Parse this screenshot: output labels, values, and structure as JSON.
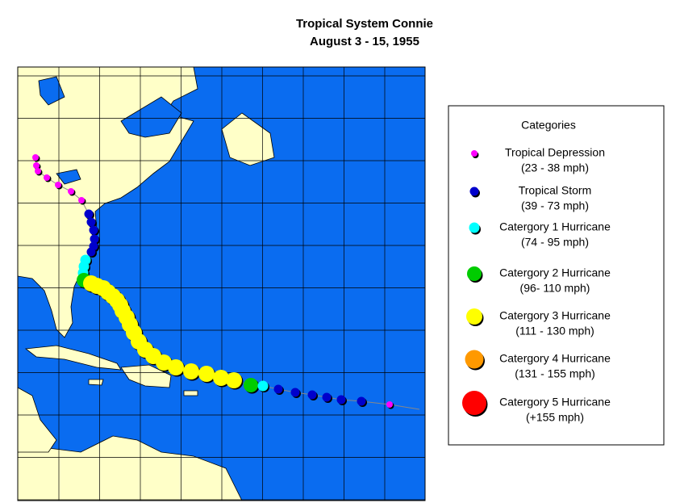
{
  "header": {
    "title": "Tropical System Connie",
    "subtitle": "August 3 -  15, 1955"
  },
  "legend": {
    "title": "Categories",
    "items": [
      {
        "name": "Tropical Depression",
        "range": "(23 - 38 mph)",
        "color": "#ff00ff"
      },
      {
        "name": "Tropical Storm",
        "range": "(39 - 73 mph)",
        "color": "#0000cc"
      },
      {
        "name": "Catergory 1 Hurricane",
        "range": "(74 - 95 mph)",
        "color": "#00ffff"
      },
      {
        "name": "Catergory 2 Hurricane",
        "range": "(96- 110 mph)",
        "color": "#00cc00"
      },
      {
        "name": "Catergory 3 Hurricane",
        "range": "(111 - 130 mph)",
        "color": "#ffff00"
      },
      {
        "name": "Catergory 4 Hurricane",
        "range": "(131 - 155 mph)",
        "color": "#ff9900"
      },
      {
        "name": "Catergory 5 Hurricane",
        "range": "(+155 mph)",
        "color": "#ff0000"
      }
    ]
  }
}
